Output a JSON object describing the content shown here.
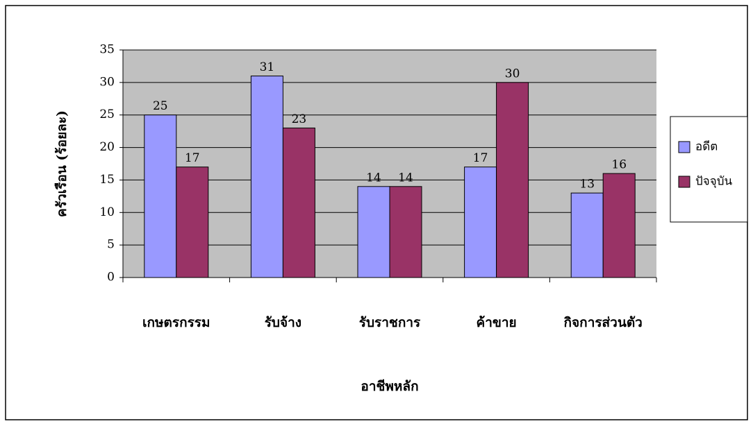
{
  "chart_data": {
    "type": "bar",
    "categories": [
      "เกษตรกรรม",
      "รับจ้าง",
      "รับราชการ",
      "ค้าขาย",
      "กิจการส่วนตัว"
    ],
    "series": [
      {
        "name": "อดีต",
        "color": "#9999ff",
        "values": [
          25,
          31,
          14,
          17,
          13
        ]
      },
      {
        "name": "ปัจจุบัน",
        "color": "#993366",
        "values": [
          17,
          23,
          14,
          30,
          16
        ]
      }
    ],
    "ylim": [
      0,
      35
    ],
    "yticks": [
      0,
      5,
      10,
      15,
      20,
      25,
      30,
      35
    ],
    "y_label": "ครัวเรือน (ร้อยละ)",
    "x_label": "อาชีพหลัก",
    "grid": true,
    "legend": "right"
  }
}
